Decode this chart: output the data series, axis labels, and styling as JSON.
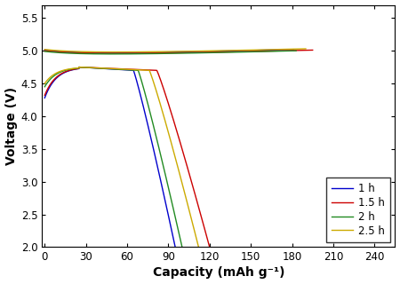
{
  "title": "",
  "xlabel": "Capacity (mAh g⁻¹)",
  "ylabel": "Voltage (V)",
  "xlim": [
    -2,
    255
  ],
  "ylim": [
    2.0,
    5.7
  ],
  "xticks": [
    0,
    30,
    60,
    90,
    120,
    150,
    180,
    210,
    240
  ],
  "yticks": [
    2.0,
    2.5,
    3.0,
    3.5,
    4.0,
    4.5,
    5.0,
    5.5
  ],
  "legend_labels": [
    "1 h",
    "1.5 h",
    "2 h",
    "2.5 h"
  ],
  "colors": [
    "#0000cc",
    "#cc0000",
    "#228b22",
    "#ccaa00"
  ],
  "background_color": "#ffffff",
  "curve_params": [
    {
      "label": "1 h",
      "color": "#0000cc",
      "charge_end": 181,
      "discharge_end": 95,
      "v_init_d": 4.28,
      "charge_v0": 5.01
    },
    {
      "label": "1.5 h",
      "color": "#cc0000",
      "charge_end": 195,
      "discharge_end": 120,
      "v_init_d": 4.32,
      "charge_v0": 5.0
    },
    {
      "label": "2 h",
      "color": "#228b22",
      "charge_end": 183,
      "discharge_end": 100,
      "v_init_d": 4.45,
      "charge_v0": 4.99
    },
    {
      "label": "2.5 h",
      "color": "#ccaa00",
      "charge_end": 190,
      "discharge_end": 112,
      "v_init_d": 4.5,
      "charge_v0": 5.02
    }
  ]
}
